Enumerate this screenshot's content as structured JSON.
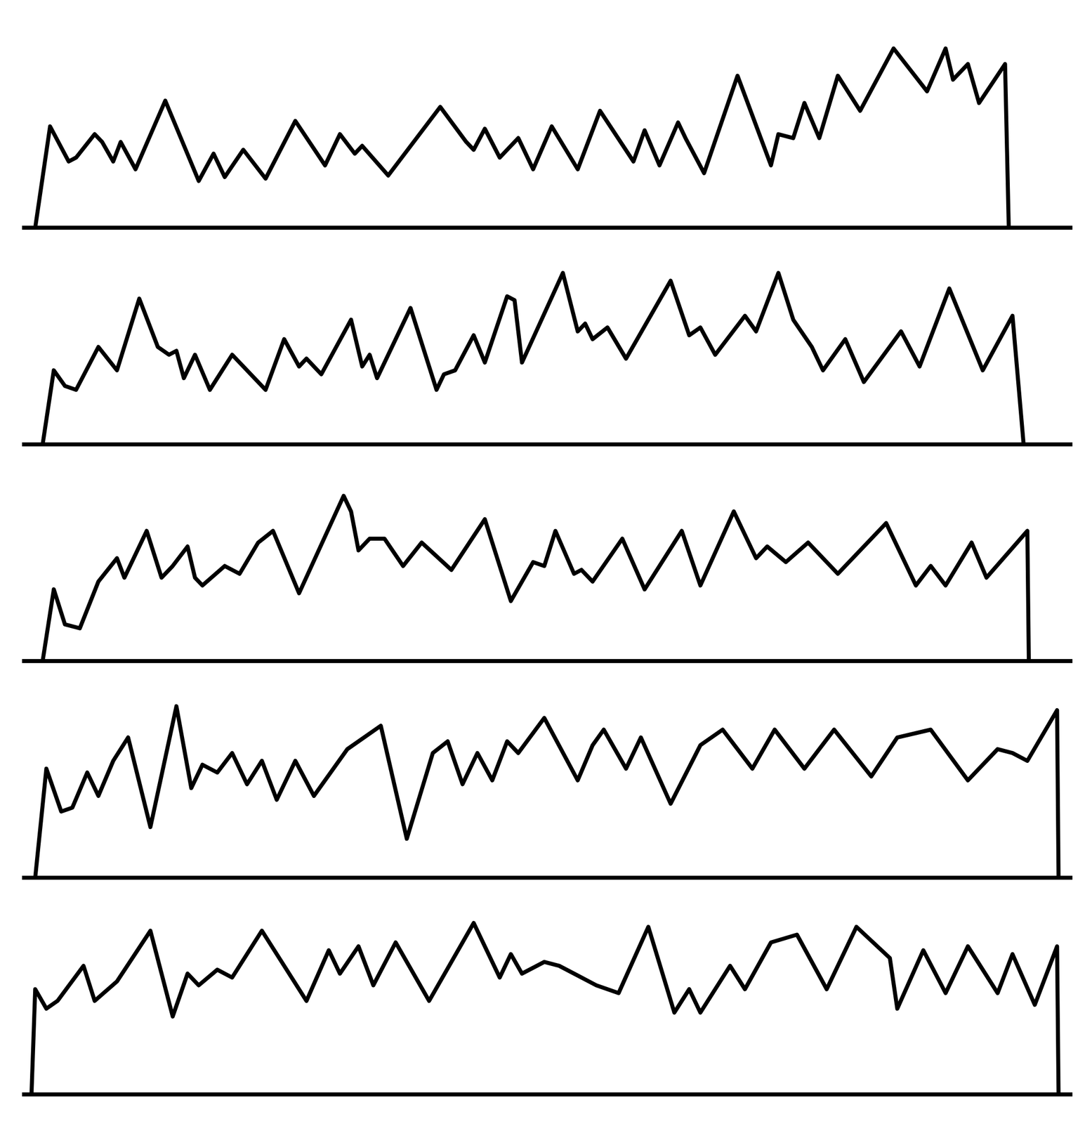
{
  "chart_data": [
    {
      "type": "line",
      "color": "#000000",
      "grid": false,
      "tick_labels": false,
      "xlim": [
        60,
        1470
      ],
      "ylim": [
        0,
        260
      ],
      "x": [
        75,
        95,
        120,
        130,
        155,
        165,
        180,
        190,
        210,
        250,
        295,
        315,
        330,
        355,
        385,
        425,
        465,
        485,
        505,
        515,
        550,
        620,
        655,
        665,
        680,
        700,
        725,
        745,
        770,
        805,
        835,
        880,
        895,
        915,
        940,
        950,
        975,
        1020,
        1065,
        1075,
        1095,
        1110,
        1130,
        1155,
        1185,
        1230,
        1275,
        1300,
        1310,
        1330,
        1345,
        1380,
        1385
      ],
      "values": [
        0,
        130,
        85,
        90,
        120,
        110,
        85,
        110,
        75,
        163,
        60,
        95,
        65,
        100,
        63,
        137,
        80,
        120,
        95,
        105,
        67,
        155,
        110,
        100,
        127,
        90,
        115,
        75,
        130,
        75,
        150,
        85,
        125,
        80,
        135,
        115,
        70,
        195,
        80,
        120,
        115,
        160,
        115,
        195,
        150,
        230,
        175,
        230,
        190,
        210,
        160,
        210,
        0
      ]
    },
    {
      "type": "line",
      "color": "#000000",
      "grid": false,
      "tick_labels": false,
      "xlim": [
        60,
        1470
      ],
      "ylim": [
        0,
        260
      ],
      "x": [
        85,
        100,
        115,
        130,
        160,
        185,
        215,
        240,
        255,
        265,
        275,
        290,
        310,
        340,
        385,
        410,
        430,
        440,
        460,
        500,
        515,
        525,
        535,
        580,
        615,
        625,
        640,
        665,
        680,
        710,
        720,
        730,
        785,
        805,
        815,
        825,
        845,
        870,
        930,
        955,
        970,
        990,
        1030,
        1045,
        1075,
        1095,
        1120,
        1135,
        1165,
        1190,
        1240,
        1265,
        1305,
        1350,
        1390,
        1405
      ],
      "values": [
        0,
        95,
        75,
        70,
        125,
        95,
        187,
        125,
        115,
        120,
        85,
        115,
        70,
        115,
        70,
        135,
        100,
        110,
        90,
        160,
        100,
        115,
        85,
        175,
        70,
        90,
        95,
        140,
        105,
        190,
        185,
        105,
        220,
        145,
        155,
        135,
        150,
        110,
        210,
        140,
        150,
        115,
        165,
        145,
        220,
        160,
        125,
        95,
        135,
        80,
        145,
        100,
        200,
        95,
        165,
        0
      ]
    },
    {
      "type": "line",
      "color": "#000000",
      "grid": false,
      "tick_labels": false,
      "xlim": [
        60,
        1470
      ],
      "ylim": [
        0,
        260
      ],
      "x": [
        85,
        100,
        115,
        135,
        160,
        185,
        195,
        225,
        245,
        260,
        280,
        290,
        300,
        330,
        350,
        375,
        395,
        430,
        490,
        500,
        510,
        525,
        545,
        570,
        595,
        635,
        680,
        715,
        745,
        760,
        775,
        800,
        810,
        825,
        865,
        895,
        945,
        970,
        1015,
        1045,
        1060,
        1085,
        1115,
        1155,
        1220,
        1260,
        1280,
        1300,
        1335,
        1355,
        1410,
        1412
      ],
      "values": [
        0,
        92,
        47,
        42,
        102,
        132,
        107,
        167,
        107,
        122,
        147,
        107,
        97,
        122,
        112,
        152,
        167,
        87,
        212,
        192,
        142,
        157,
        157,
        122,
        152,
        117,
        182,
        77,
        127,
        122,
        167,
        112,
        117,
        102,
        157,
        92,
        167,
        97,
        192,
        132,
        147,
        127,
        152,
        112,
        177,
        97,
        122,
        97,
        152,
        107,
        167,
        0
      ]
    },
    {
      "type": "line",
      "color": "#000000",
      "grid": false,
      "tick_labels": false,
      "xlim": [
        60,
        1470
      ],
      "ylim": [
        0,
        260
      ],
      "x": [
        75,
        90,
        110,
        125,
        145,
        160,
        180,
        200,
        230,
        265,
        285,
        300,
        320,
        340,
        360,
        380,
        400,
        425,
        450,
        495,
        540,
        575,
        610,
        630,
        650,
        670,
        690,
        710,
        725,
        760,
        805,
        825,
        840,
        870,
        890,
        930,
        970,
        1000,
        1040,
        1070,
        1110,
        1150,
        1200,
        1235,
        1280,
        1330,
        1370,
        1390,
        1410,
        1450,
        1452
      ],
      "values": [
        0,
        140,
        85,
        90,
        135,
        105,
        150,
        180,
        65,
        220,
        115,
        145,
        135,
        160,
        120,
        150,
        100,
        150,
        105,
        165,
        195,
        50,
        160,
        175,
        120,
        160,
        125,
        175,
        160,
        205,
        125,
        170,
        190,
        140,
        180,
        95,
        170,
        190,
        140,
        190,
        140,
        190,
        130,
        180,
        190,
        125,
        165,
        160,
        150,
        215,
        0
      ]
    },
    {
      "type": "line",
      "color": "#000000",
      "grid": false,
      "tick_labels": false,
      "xlim": [
        60,
        1470
      ],
      "ylim": [
        0,
        260
      ],
      "x": [
        70,
        75,
        90,
        105,
        140,
        155,
        185,
        230,
        260,
        280,
        295,
        320,
        340,
        380,
        440,
        470,
        485,
        510,
        530,
        560,
        605,
        665,
        700,
        715,
        730,
        760,
        780,
        800,
        830,
        860,
        900,
        935,
        955,
        970,
        1010,
        1030,
        1065,
        1100,
        1140,
        1180,
        1225,
        1235,
        1270,
        1300,
        1330,
        1370,
        1390,
        1420,
        1450,
        1452
      ],
      "values": [
        0,
        135,
        110,
        120,
        165,
        120,
        145,
        210,
        100,
        155,
        140,
        160,
        150,
        210,
        120,
        185,
        155,
        190,
        140,
        195,
        120,
        220,
        150,
        180,
        155,
        170,
        165,
        155,
        140,
        130,
        215,
        105,
        135,
        105,
        165,
        135,
        195,
        205,
        135,
        215,
        175,
        110,
        185,
        130,
        190,
        130,
        180,
        115,
        190,
        0
      ]
    }
  ]
}
